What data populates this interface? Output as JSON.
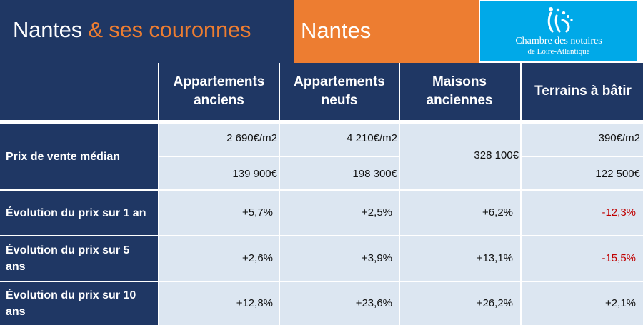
{
  "header": {
    "title_main": "Nantes ",
    "title_accent": "& ses couronnes",
    "city": "Nantes",
    "logo": {
      "icon": "notaires-logo-icon",
      "line1": "Chambre des notaires",
      "line2": "de Loire-Atlantique"
    }
  },
  "columns": [
    "Appartements anciens",
    "Appartements neufs",
    "Maisons anciennes",
    "Terrains à bâtir"
  ],
  "rows": {
    "prix_label": "Prix de vente médian",
    "prix_m2": [
      "2 690€/m2",
      "4 210€/m2",
      "390€/m2"
    ],
    "prix_total": [
      "139 900€",
      "198 300€",
      "122 500€"
    ],
    "maisons_prix": "328 100€",
    "evol1_label": "Évolution du prix sur 1 an",
    "evol1": [
      "+5,7%",
      "+2,5%",
      "+6,2%",
      "-12,3%"
    ],
    "evol5_label": "Évolution du prix sur 5 ans",
    "evol5": [
      "+2,6%",
      "+3,9%",
      "+13,1%",
      "-15,5%"
    ],
    "evol10_label": "Évolution du prix sur 10 ans",
    "evol10": [
      "+12,8%",
      "+23,6%",
      "+26,2%",
      "+2,1%"
    ]
  },
  "colors": {
    "navy": "#1f3764",
    "orange": "#ed7d31",
    "cell": "#dce6f1",
    "negative": "#c00000",
    "logo_blue": "#00a9e8"
  }
}
